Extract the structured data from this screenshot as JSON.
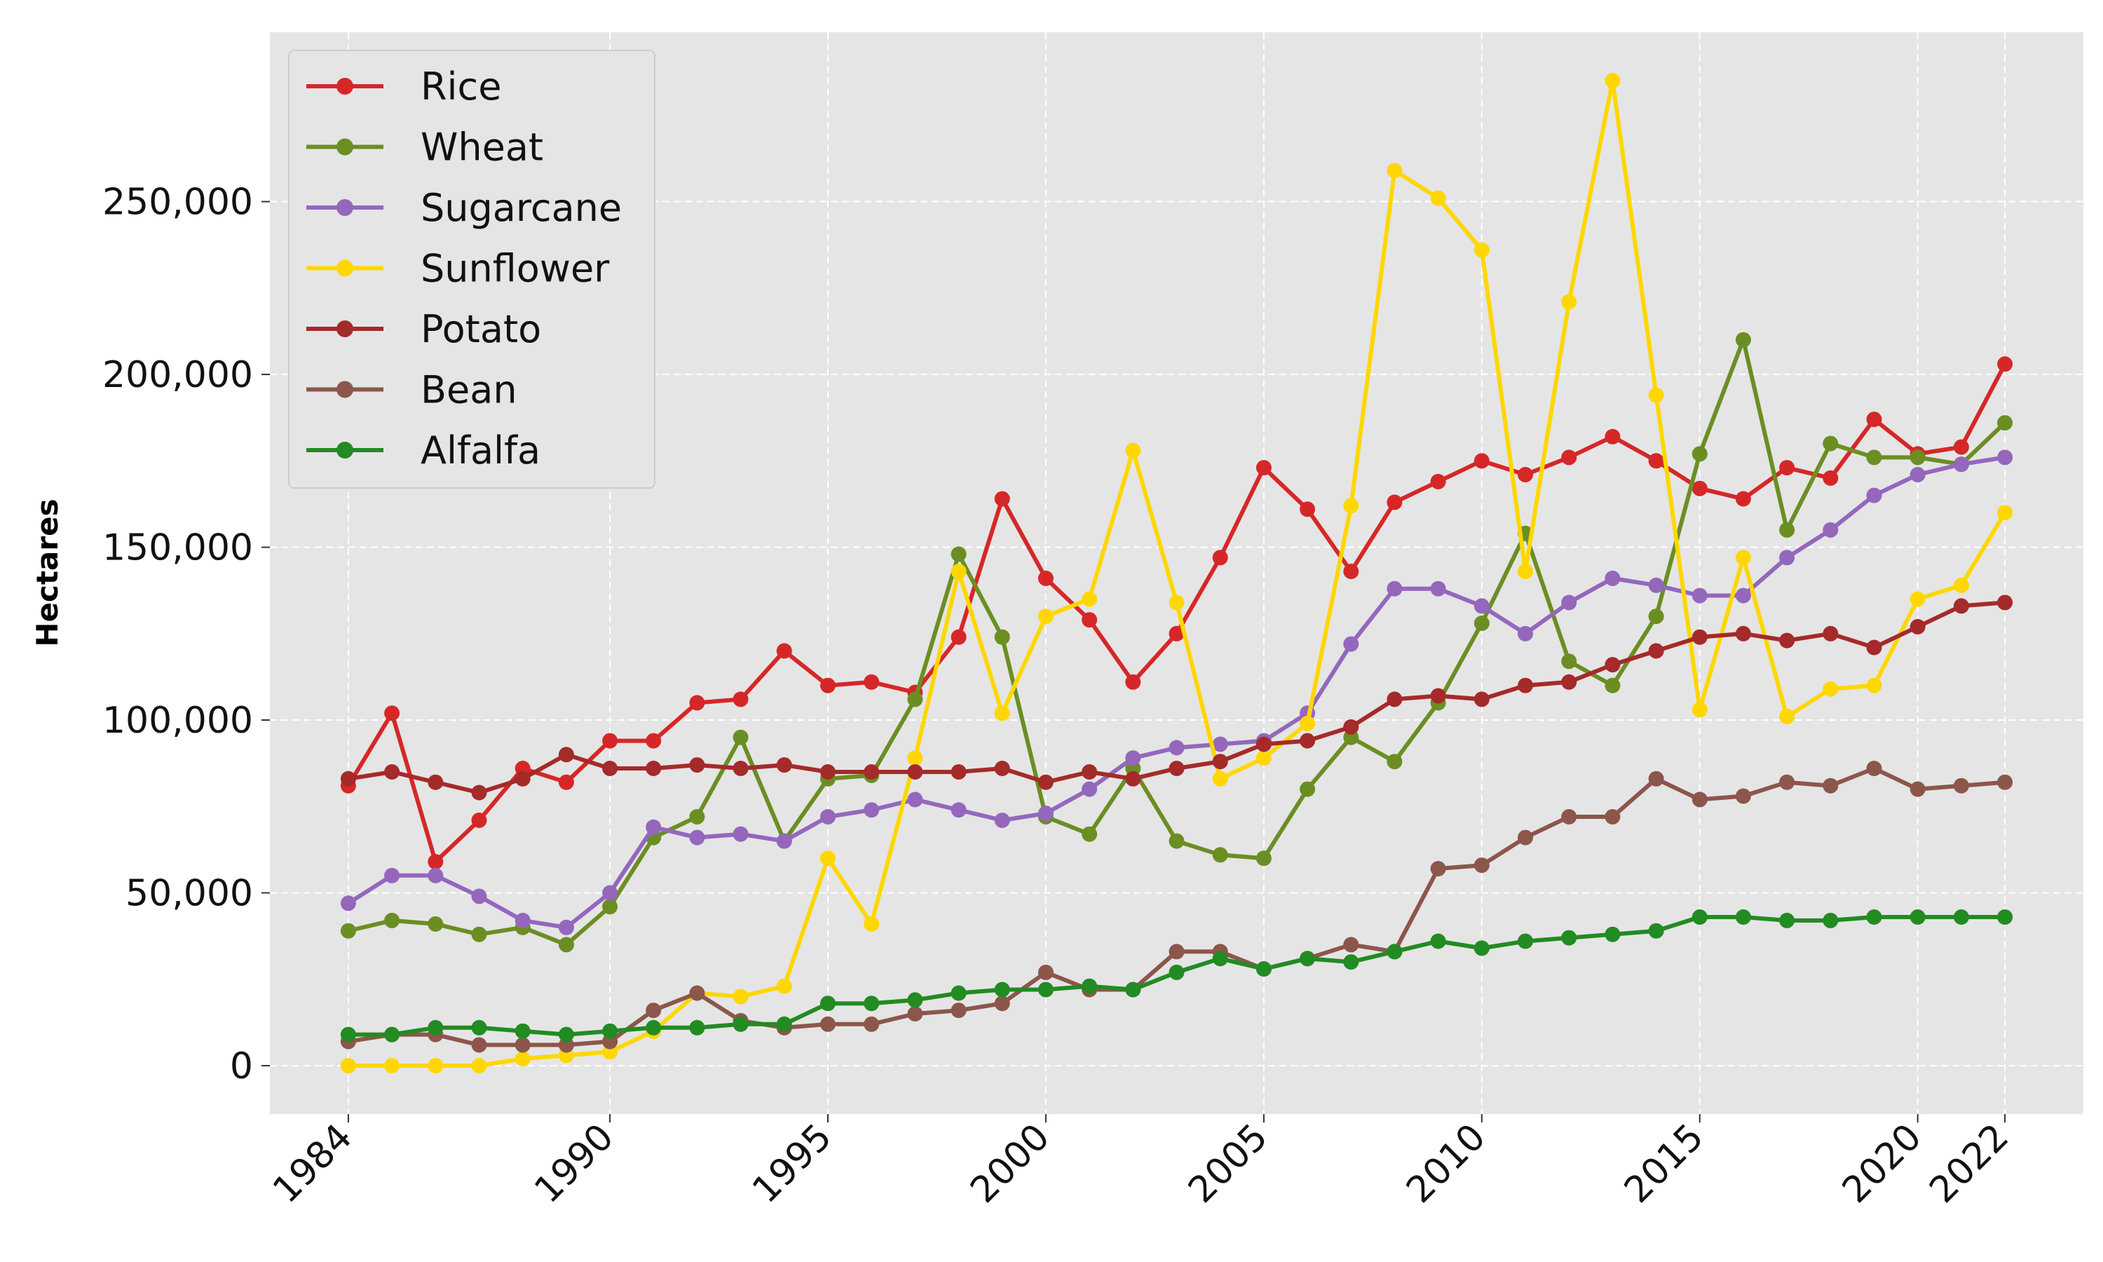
{
  "chart_data": {
    "type": "line",
    "title": "",
    "xlabel": "",
    "ylabel": "Hectares",
    "x": [
      1984,
      1985,
      1986,
      1987,
      1988,
      1989,
      1990,
      1991,
      1992,
      1993,
      1994,
      1995,
      1996,
      1997,
      1998,
      1999,
      2000,
      2001,
      2002,
      2003,
      2004,
      2005,
      2006,
      2007,
      2008,
      2009,
      2010,
      2011,
      2012,
      2013,
      2014,
      2015,
      2016,
      2017,
      2018,
      2019,
      2020,
      2021,
      2022
    ],
    "xticks": [
      1984,
      1990,
      1995,
      2000,
      2005,
      2010,
      2015,
      2020,
      2022
    ],
    "xlim": [
      1982.2,
      2023.8
    ],
    "ylim": [
      -14000,
      299000
    ],
    "yticks": [
      0,
      50000,
      100000,
      150000,
      200000,
      250000
    ],
    "ytick_labels": [
      "0",
      "50,000",
      "100,000",
      "150,000",
      "200,000",
      "250,000"
    ],
    "grid": true,
    "legend_position": "upper-left",
    "series": [
      {
        "name": "Rice",
        "color": "#d62728",
        "values": [
          81000,
          102000,
          59000,
          71000,
          86000,
          82000,
          94000,
          94000,
          105000,
          106000,
          120000,
          110000,
          111000,
          108000,
          124000,
          164000,
          141000,
          129000,
          111000,
          125000,
          147000,
          173000,
          161000,
          143000,
          163000,
          169000,
          175000,
          171000,
          176000,
          182000,
          175000,
          167000,
          164000,
          173000,
          170000,
          187000,
          177000,
          179000,
          203000
        ]
      },
      {
        "name": "Wheat",
        "color": "#6b8e23",
        "values": [
          39000,
          42000,
          41000,
          38000,
          40000,
          35000,
          46000,
          66000,
          72000,
          95000,
          65000,
          83000,
          84000,
          106000,
          148000,
          124000,
          72000,
          67000,
          86000,
          65000,
          61000,
          60000,
          80000,
          95000,
          88000,
          105000,
          128000,
          154000,
          117000,
          110000,
          130000,
          177000,
          210000,
          155000,
          180000,
          176000,
          176000,
          174000,
          186000
        ]
      },
      {
        "name": "Sugarcane",
        "color": "#9467bd",
        "values": [
          47000,
          55000,
          55000,
          49000,
          42000,
          40000,
          50000,
          69000,
          66000,
          67000,
          65000,
          72000,
          74000,
          77000,
          74000,
          71000,
          73000,
          80000,
          89000,
          92000,
          93000,
          94000,
          102000,
          122000,
          138000,
          138000,
          133000,
          125000,
          134000,
          141000,
          139000,
          136000,
          136000,
          147000,
          155000,
          165000,
          171000,
          174000,
          176000
        ]
      },
      {
        "name": "Sunflower",
        "color": "#ffd700",
        "values": [
          0,
          0,
          0,
          0,
          2000,
          3000,
          4000,
          10000,
          21000,
          20000,
          23000,
          60000,
          41000,
          89000,
          143000,
          102000,
          130000,
          135000,
          178000,
          134000,
          83000,
          89000,
          99000,
          162000,
          259000,
          251000,
          236000,
          143000,
          221000,
          285000,
          194000,
          103000,
          147000,
          101000,
          109000,
          110000,
          135000,
          139000,
          160000
        ]
      },
      {
        "name": "Potato",
        "color": "#a52a2a",
        "values": [
          83000,
          85000,
          82000,
          79000,
          83000,
          90000,
          86000,
          86000,
          87000,
          86000,
          87000,
          85000,
          85000,
          85000,
          85000,
          86000,
          82000,
          85000,
          83000,
          86000,
          88000,
          93000,
          94000,
          98000,
          106000,
          107000,
          106000,
          110000,
          111000,
          116000,
          120000,
          124000,
          125000,
          123000,
          125000,
          121000,
          127000,
          133000,
          134000
        ]
      },
      {
        "name": "Bean",
        "color": "#8c564b",
        "values": [
          7000,
          9000,
          9000,
          6000,
          6000,
          6000,
          7000,
          16000,
          21000,
          13000,
          11000,
          12000,
          12000,
          15000,
          16000,
          18000,
          27000,
          22000,
          22000,
          33000,
          33000,
          28000,
          31000,
          35000,
          33000,
          57000,
          58000,
          66000,
          72000,
          72000,
          83000,
          77000,
          78000,
          82000,
          81000,
          86000,
          80000,
          81000,
          82000
        ]
      },
      {
        "name": "Alfalfa",
        "color": "#228b22",
        "values": [
          9000,
          9000,
          11000,
          11000,
          10000,
          9000,
          10000,
          11000,
          11000,
          12000,
          12000,
          18000,
          18000,
          19000,
          21000,
          22000,
          22000,
          23000,
          22000,
          27000,
          31000,
          28000,
          31000,
          30000,
          33000,
          36000,
          34000,
          36000,
          37000,
          38000,
          39000,
          43000,
          43000,
          42000,
          42000,
          43000,
          43000,
          43000,
          43000
        ]
      }
    ]
  }
}
